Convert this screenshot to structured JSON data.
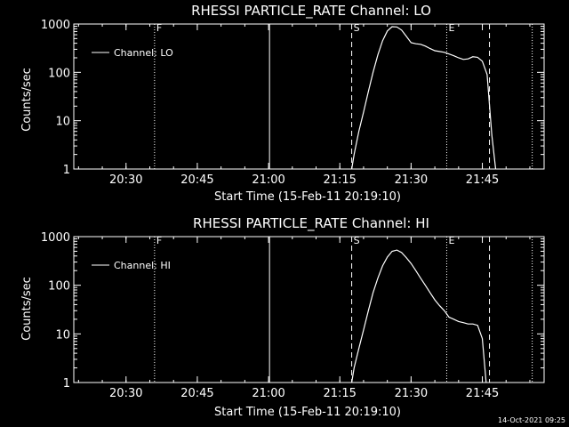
{
  "footer": {
    "timestamp": "14-Oct-2021 09:25"
  },
  "chart_data": [
    {
      "type": "line",
      "title": "RHESSI PARTICLE_RATE Channel: LO",
      "xlabel": "Start Time (15-Feb-11 20:19:10)",
      "ylabel": "Counts/sec",
      "yscale": "log",
      "ylim": [
        1,
        1000
      ],
      "xlim_min": [
        0,
        99
      ],
      "x_ticks": [
        {
          "t": 11,
          "label": "20:30"
        },
        {
          "t": 26,
          "label": "20:45"
        },
        {
          "t": 41,
          "label": "21:00"
        },
        {
          "t": 56,
          "label": "21:15"
        },
        {
          "t": 71,
          "label": "21:30"
        },
        {
          "t": 86,
          "label": "21:45"
        }
      ],
      "y_ticks": [
        {
          "v": 1,
          "label": "1"
        },
        {
          "v": 10,
          "label": "10"
        },
        {
          "v": 100,
          "label": "100"
        },
        {
          "v": 1000,
          "label": "1000"
        }
      ],
      "legend": {
        "label": "Channel: LO",
        "placement": "top-left"
      },
      "markers": [
        {
          "t": 17,
          "style": "dotted",
          "label": "F"
        },
        {
          "t": 41.2,
          "style": "solid",
          "label": ""
        },
        {
          "t": 58.5,
          "style": "dashed",
          "label": "S"
        },
        {
          "t": 78.5,
          "style": "dotted",
          "label": "E"
        },
        {
          "t": 87.5,
          "style": "dashed",
          "label": ""
        },
        {
          "t": 96.5,
          "style": "dotted",
          "label": ""
        }
      ],
      "series": [
        {
          "x": [
            58.5,
            59,
            60,
            61,
            62,
            63,
            64,
            65,
            66,
            67,
            68,
            69,
            70,
            71,
            72,
            73,
            74,
            75,
            76,
            77,
            78,
            79,
            80,
            81,
            82,
            83,
            84,
            85,
            86,
            87,
            88,
            88.8
          ],
          "y": [
            1,
            2,
            6,
            15,
            40,
            100,
            230,
            450,
            720,
            880,
            870,
            750,
            560,
            410,
            390,
            380,
            350,
            310,
            280,
            270,
            260,
            240,
            220,
            200,
            185,
            190,
            210,
            205,
            170,
            90,
            5,
            1
          ]
        }
      ]
    },
    {
      "type": "line",
      "title": "RHESSI PARTICLE_RATE Channel: HI",
      "xlabel": "Start Time (15-Feb-11 20:19:10)",
      "ylabel": "Counts/sec",
      "yscale": "log",
      "ylim": [
        1,
        1000
      ],
      "xlim_min": [
        0,
        99
      ],
      "x_ticks": [
        {
          "t": 11,
          "label": "20:30"
        },
        {
          "t": 26,
          "label": "20:45"
        },
        {
          "t": 41,
          "label": "21:00"
        },
        {
          "t": 56,
          "label": "21:15"
        },
        {
          "t": 71,
          "label": "21:30"
        },
        {
          "t": 86,
          "label": "21:45"
        }
      ],
      "y_ticks": [
        {
          "v": 1,
          "label": "1"
        },
        {
          "v": 10,
          "label": "10"
        },
        {
          "v": 100,
          "label": "100"
        },
        {
          "v": 1000,
          "label": "1000"
        }
      ],
      "legend": {
        "label": "Channel: HI",
        "placement": "top-left"
      },
      "markers": [
        {
          "t": 17,
          "style": "dotted",
          "label": "F"
        },
        {
          "t": 41.2,
          "style": "solid",
          "label": ""
        },
        {
          "t": 58.5,
          "style": "dashed",
          "label": "S"
        },
        {
          "t": 78.5,
          "style": "dotted",
          "label": "E"
        },
        {
          "t": 87.5,
          "style": "dashed",
          "label": ""
        },
        {
          "t": 96.5,
          "style": "dotted",
          "label": ""
        }
      ],
      "series": [
        {
          "x": [
            58.5,
            59,
            60,
            61,
            62,
            63,
            64,
            65,
            66,
            67,
            68,
            69,
            70,
            71,
            72,
            73,
            74,
            75,
            76,
            77,
            78,
            79,
            80,
            81,
            82,
            83,
            84,
            85,
            86,
            86.8
          ],
          "y": [
            1,
            2,
            5,
            12,
            30,
            70,
            140,
            250,
            380,
            500,
            530,
            470,
            370,
            280,
            200,
            140,
            100,
            70,
            50,
            38,
            30,
            22,
            20,
            18,
            17,
            16,
            16,
            15,
            8,
            1
          ]
        }
      ]
    }
  ]
}
